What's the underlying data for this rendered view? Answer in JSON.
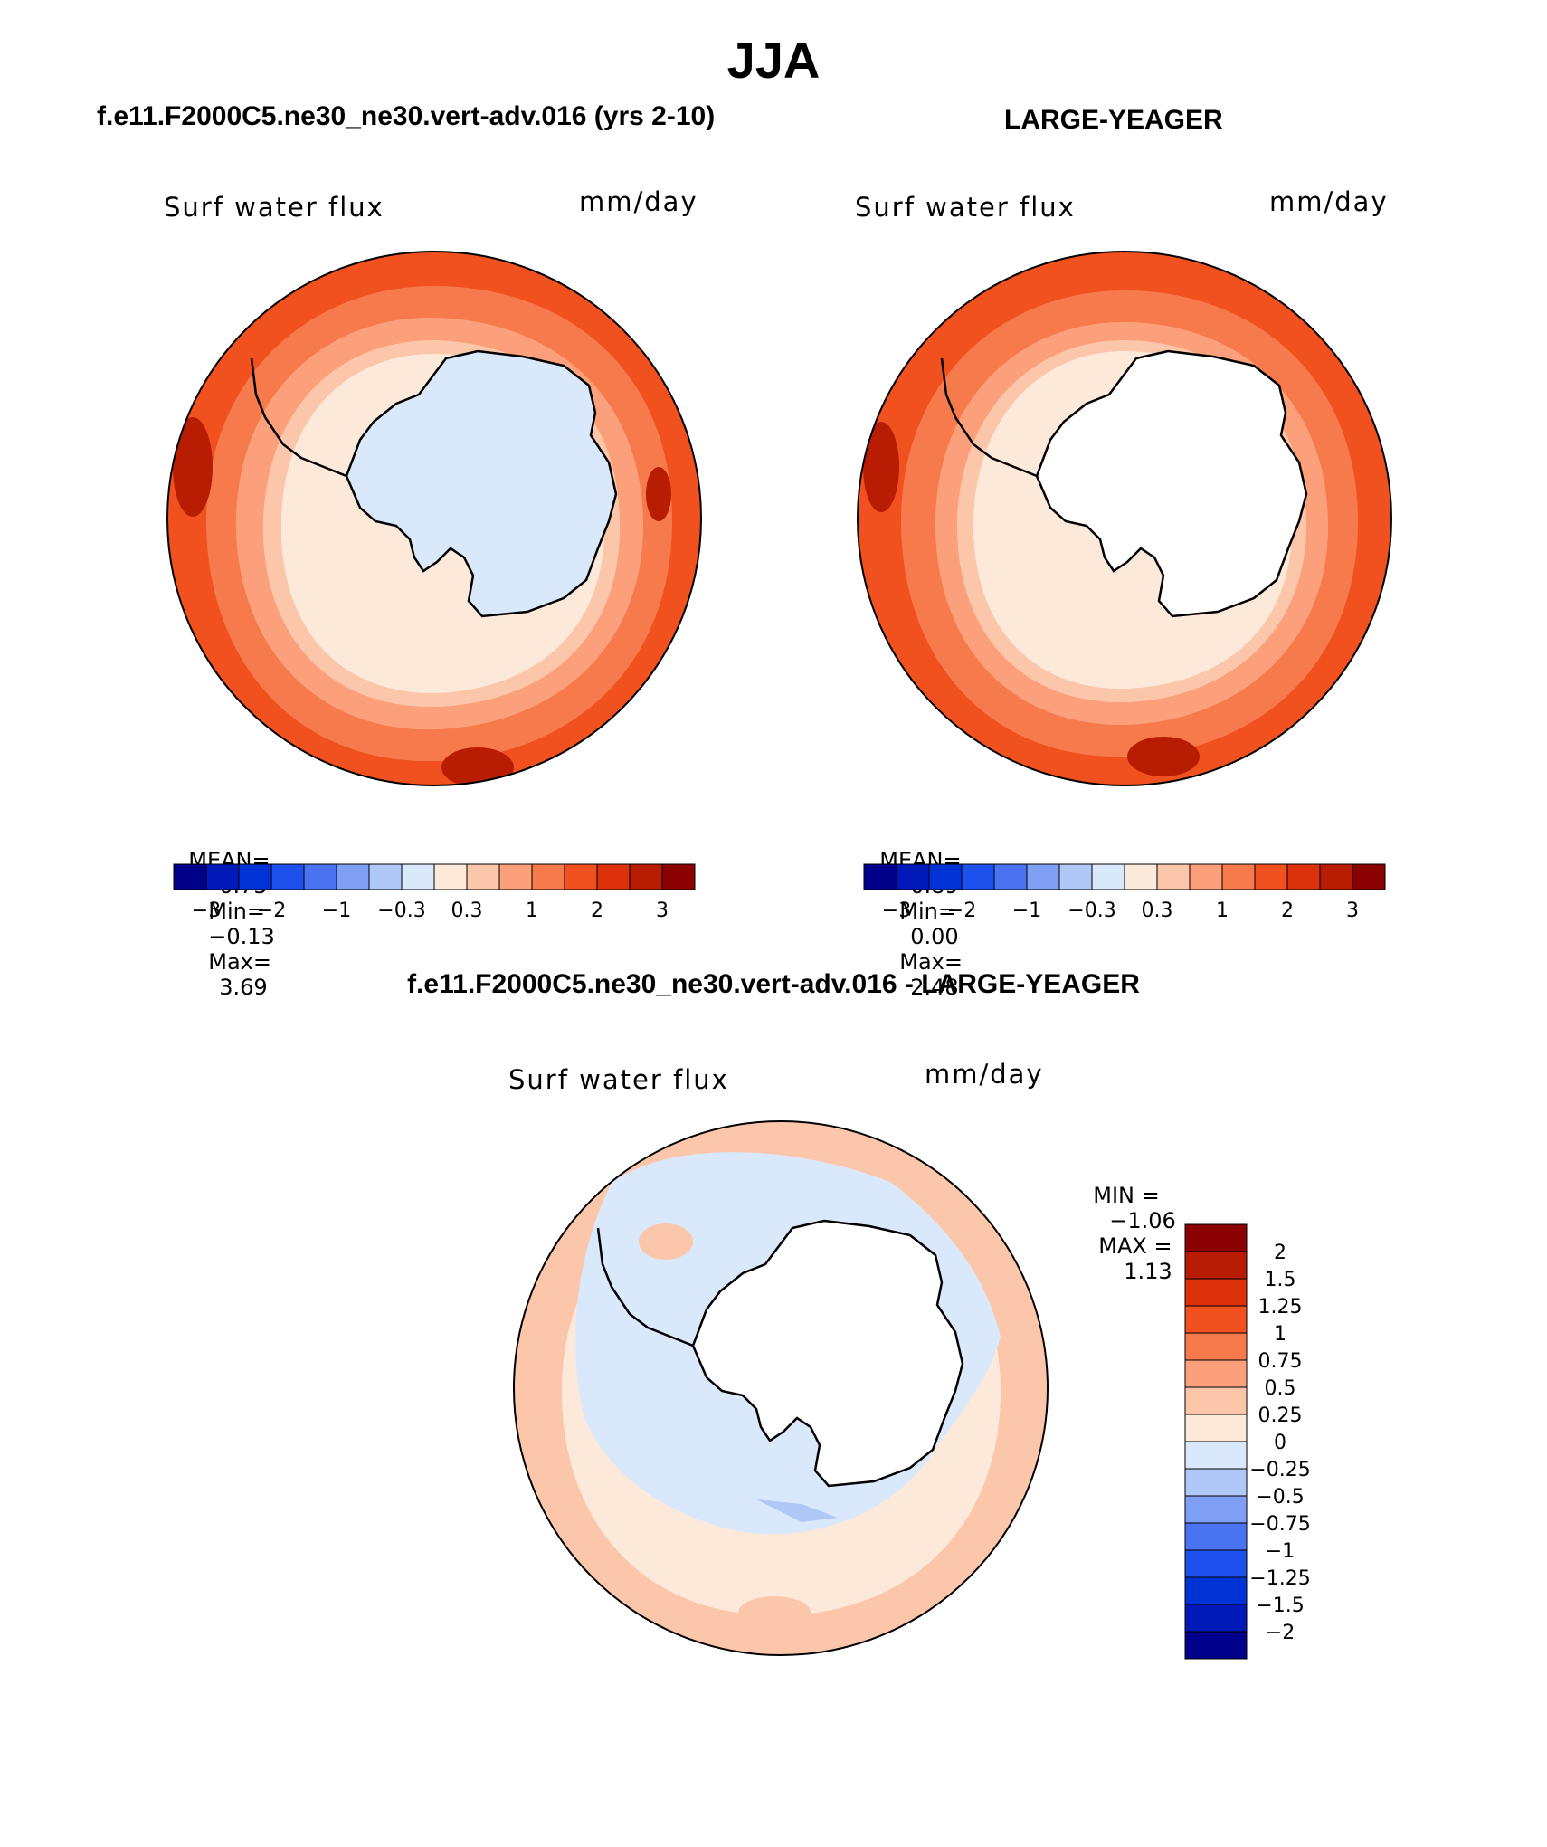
{
  "title": "JJA",
  "panels": [
    {
      "heading": "f.e11.F2000C5.ne30_ne30.vert-adv.016 (yrs 2-10)",
      "variable": "Surf water flux",
      "units": "mm/day",
      "mean_label": "MEAN=",
      "mean_value": "0.75",
      "min_label": "Min=",
      "min_value": "−0.13",
      "max_label": "Max=",
      "max_value": "3.69"
    },
    {
      "heading": "LARGE-YEAGER",
      "variable": "Surf water flux",
      "units": "mm/day",
      "mean_label": "MEAN=",
      "mean_value": "0.89",
      "min_label": "Min=",
      "min_value": "0.00",
      "max_label": "Max=",
      "max_value": "2.48"
    },
    {
      "heading": "f.e11.F2000C5.ne30_ne30.vert-adv.016 - LARGE-YEAGER",
      "variable": "Surf water flux",
      "units": "mm/day",
      "min_label": "MIN =",
      "min_value": "−1.06",
      "max_label": "MAX =",
      "max_value": "1.13"
    }
  ],
  "colorbar_abs": {
    "colors": [
      "#00008b",
      "#0019b8",
      "#0033d6",
      "#1e50ee",
      "#4a73f2",
      "#7f9ff5",
      "#b0c8f7",
      "#d9e8fb",
      "#fde9d9",
      "#fcc6aa",
      "#fba07a",
      "#f77a4c",
      "#f1501f",
      "#dc310b",
      "#b81d04",
      "#8b0000"
    ],
    "tick_labels": [
      "−3",
      "−2",
      "−1",
      "−0.3",
      "0.3",
      "1",
      "2",
      "3"
    ]
  },
  "colorbar_diff": {
    "colors": [
      "#8b0000",
      "#b81d04",
      "#dc310b",
      "#f1501f",
      "#f77a4c",
      "#fba07a",
      "#fcc6aa",
      "#fde9d9",
      "#d9e8fb",
      "#b0c8f7",
      "#7f9ff5",
      "#4a73f2",
      "#1e50ee",
      "#0033d6",
      "#0019b8",
      "#00008b"
    ],
    "tick_labels": [
      "2",
      "1.5",
      "1.25",
      "1",
      "0.75",
      "0.5",
      "0.25",
      "0",
      "−0.25",
      "−0.5",
      "−0.75",
      "−1",
      "−1.25",
      "−1.5",
      "−2"
    ]
  },
  "map_colors": {
    "land_field": "#d9e8fb",
    "land_blank": "#ffffff",
    "ring_outer": "#f1501f",
    "ring_mid": "#f77a4c",
    "ring_inner": "#fba07a",
    "ring_pale": "#fcc6aa",
    "ring_lightest": "#fde9d9",
    "dark_spot": "#b81d04",
    "diff_base": "#fcc6aa",
    "diff_pale": "#fde9d9",
    "diff_blue": "#d9e8fb",
    "diff_blue2": "#b0c8f7",
    "coast": "#000000"
  }
}
